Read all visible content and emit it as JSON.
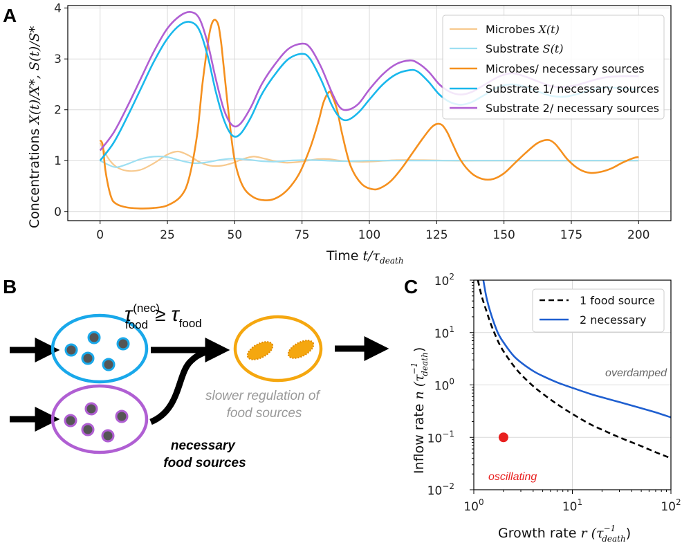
{
  "panels": {
    "a": "A",
    "b": "B",
    "c": "C"
  },
  "colors": {
    "microbes_faint": "#f7c98e",
    "substrate_faint": "#9ddff2",
    "microbes": "#f5901e",
    "substrate1": "#1ab8ec",
    "substrate2": "#b05fd3",
    "one_food": "#000000",
    "two_necessary": "#1f5fd0",
    "point": "#e8201f",
    "grid": "#d9d9d9",
    "blue_cell": "#19a8ea",
    "purple_cell": "#b05fd3",
    "orange_cell": "#f5a70f"
  },
  "chart_data": [
    {
      "id": "A",
      "type": "line",
      "title": "",
      "xlabel": "Time",
      "xlabel_math": "t/τ",
      "xlabel_sub": "death",
      "ylabel": "Concentrations",
      "ylabel_math": "X(t)/X*, S(t)/S*",
      "xlim": [
        -12,
        212
      ],
      "ylim": [
        -0.18,
        4.05
      ],
      "xticks": [
        0,
        25,
        50,
        75,
        100,
        125,
        150,
        175,
        200
      ],
      "yticks": [
        0,
        1,
        2,
        3,
        4
      ],
      "grid": true,
      "legend_position": "top-right",
      "series": [
        {
          "name": "Microbes",
          "math": "X(t)",
          "color_key": "microbes_faint",
          "width": 2.2,
          "x": [
            0,
            3,
            6,
            10,
            15,
            20,
            25,
            29,
            33,
            37,
            41,
            45,
            49,
            53,
            57,
            61,
            65,
            69,
            73,
            77,
            81,
            85,
            89,
            95,
            100,
            110,
            120,
            130,
            140,
            150,
            160,
            170,
            180,
            190,
            200
          ],
          "y": [
            1.35,
            1.05,
            0.88,
            0.8,
            0.82,
            0.95,
            1.12,
            1.18,
            1.1,
            0.97,
            0.9,
            0.9,
            0.95,
            1.03,
            1.08,
            1.04,
            0.99,
            0.96,
            0.97,
            1.0,
            1.03,
            1.03,
            1.0,
            0.98,
            0.98,
            1.01,
            1.01,
            1.0,
            1.0,
            1.0,
            1.0,
            1.0,
            1.0,
            1.0,
            1.0
          ]
        },
        {
          "name": "Substrate",
          "math": "S(t)",
          "color_key": "substrate_faint",
          "width": 2.2,
          "x": [
            0,
            3,
            6,
            10,
            15,
            20,
            25,
            30,
            35,
            40,
            45,
            50,
            55,
            60,
            65,
            70,
            75,
            80,
            90,
            100,
            110,
            120,
            130,
            140,
            150,
            160,
            170,
            180,
            190,
            200
          ],
          "y": [
            1.0,
            0.92,
            0.87,
            0.93,
            1.03,
            1.08,
            1.07,
            1.0,
            0.95,
            0.97,
            1.02,
            1.04,
            1.02,
            0.99,
            0.98,
            1.0,
            1.01,
            1.01,
            0.99,
            1.0,
            1.0,
            1.0,
            1.0,
            1.0,
            1.0,
            1.0,
            1.0,
            1.0,
            1.0,
            1.0
          ]
        },
        {
          "name": "Microbes/ necessary sources",
          "color_key": "microbes",
          "width": 2.6,
          "x": [
            0,
            1,
            2,
            4,
            6,
            10,
            15,
            20,
            25,
            30,
            33,
            36,
            38,
            40,
            41,
            42,
            43,
            44,
            45,
            46,
            48,
            50,
            53,
            57,
            62,
            66,
            70,
            74,
            78,
            81,
            83,
            85,
            86,
            88,
            90,
            93,
            97,
            101,
            104,
            108,
            112,
            116,
            120,
            123,
            125,
            127,
            129,
            131,
            134,
            138,
            142,
            146,
            150,
            154,
            158,
            162,
            165,
            167,
            169,
            171,
            174,
            178,
            182,
            186,
            190,
            194,
            198,
            200
          ],
          "y": [
            1.4,
            1.3,
            0.8,
            0.3,
            0.15,
            0.08,
            0.06,
            0.07,
            0.12,
            0.3,
            0.65,
            1.5,
            2.5,
            3.3,
            3.6,
            3.75,
            3.76,
            3.65,
            3.3,
            2.8,
            1.8,
            1.0,
            0.5,
            0.28,
            0.22,
            0.28,
            0.45,
            0.75,
            1.25,
            1.75,
            2.15,
            2.35,
            2.3,
            2.0,
            1.5,
            0.9,
            0.55,
            0.44,
            0.46,
            0.6,
            0.85,
            1.15,
            1.45,
            1.65,
            1.72,
            1.7,
            1.55,
            1.32,
            1.0,
            0.75,
            0.64,
            0.64,
            0.75,
            0.95,
            1.15,
            1.33,
            1.4,
            1.4,
            1.33,
            1.2,
            1.0,
            0.83,
            0.76,
            0.78,
            0.85,
            0.96,
            1.05,
            1.07
          ]
        },
        {
          "name": "Substrate 1/ necessary sources",
          "color_key": "substrate1",
          "width": 2.6,
          "x": [
            0,
            5,
            10,
            15,
            20,
            25,
            30,
            34,
            37,
            40,
            43,
            46,
            49,
            52,
            56,
            60,
            65,
            70,
            75,
            78,
            82,
            86,
            89,
            92,
            96,
            100,
            105,
            110,
            115,
            118,
            122,
            126,
            130,
            134,
            138,
            143,
            148,
            153,
            158,
            163,
            168,
            173,
            178,
            183,
            188,
            194,
            200
          ],
          "y": [
            1.0,
            1.35,
            1.85,
            2.4,
            2.95,
            3.4,
            3.68,
            3.72,
            3.55,
            3.05,
            2.35,
            1.8,
            1.5,
            1.52,
            1.85,
            2.3,
            2.7,
            3.0,
            3.1,
            3.0,
            2.6,
            2.1,
            1.85,
            1.8,
            1.95,
            2.2,
            2.5,
            2.7,
            2.78,
            2.75,
            2.55,
            2.3,
            2.15,
            2.1,
            2.15,
            2.3,
            2.45,
            2.5,
            2.45,
            2.35,
            2.27,
            2.26,
            2.32,
            2.4,
            2.44,
            2.42,
            2.4
          ]
        },
        {
          "name": "Substrate 2/ necessary sources",
          "color_key": "substrate2",
          "width": 2.6,
          "x": [
            0,
            5,
            10,
            15,
            20,
            25,
            30,
            34,
            37,
            40,
            43,
            46,
            49,
            52,
            56,
            60,
            65,
            70,
            75,
            78,
            82,
            86,
            89,
            92,
            96,
            100,
            105,
            110,
            115,
            118,
            122,
            126,
            130,
            134,
            138,
            143,
            148,
            153,
            158,
            163,
            168,
            173,
            178,
            183,
            188,
            194,
            200
          ],
          "y": [
            1.2,
            1.55,
            2.05,
            2.6,
            3.15,
            3.6,
            3.86,
            3.92,
            3.78,
            3.3,
            2.6,
            2.0,
            1.7,
            1.72,
            2.05,
            2.5,
            2.9,
            3.2,
            3.3,
            3.22,
            2.85,
            2.35,
            2.05,
            2.0,
            2.12,
            2.4,
            2.7,
            2.9,
            2.97,
            2.92,
            2.75,
            2.5,
            2.35,
            2.3,
            2.35,
            2.5,
            2.65,
            2.72,
            2.65,
            2.55,
            2.46,
            2.45,
            2.5,
            2.58,
            2.64,
            2.66,
            2.66
          ]
        }
      ]
    },
    {
      "id": "C",
      "type": "line",
      "title": "",
      "xlabel": "Growth rate",
      "xlabel_math": "r (τ",
      "xlabel_sup": "−1",
      "xlabel_sub": "death",
      "ylabel": "Inflow rate",
      "ylabel_math": "n (τ",
      "xscale": "log",
      "yscale": "log",
      "xlim": [
        1,
        100
      ],
      "ylim": [
        0.01,
        100
      ],
      "xticks": [
        1,
        10,
        100
      ],
      "xtick_labels": [
        [
          "10",
          "0"
        ],
        [
          "10",
          "1"
        ],
        [
          "10",
          "2"
        ]
      ],
      "yticks": [
        0.01,
        0.1,
        1,
        10,
        100
      ],
      "ytick_labels": [
        [
          "10",
          "−2"
        ],
        [
          "10",
          "−1"
        ],
        [
          "10",
          "0"
        ],
        [
          "10",
          "1"
        ],
        [
          "10",
          "2"
        ]
      ],
      "grid": true,
      "legend_position": "top-right",
      "series": [
        {
          "name": "1 food source",
          "style": "dashed",
          "color_key": "one_food",
          "x": [
            1.1,
            1.2,
            1.35,
            1.5,
            1.75,
            2,
            2.5,
            3,
            4,
            5,
            7,
            10,
            15,
            20,
            30,
            50,
            70,
            100
          ],
          "y": [
            100,
            50,
            25,
            14,
            7,
            4.4,
            2.4,
            1.6,
            0.95,
            0.68,
            0.43,
            0.28,
            0.18,
            0.14,
            0.1,
            0.068,
            0.052,
            0.04
          ]
        },
        {
          "name": "2 necessary",
          "style": "solid",
          "color_key": "two_necessary",
          "x": [
            1.25,
            1.35,
            1.5,
            1.75,
            2,
            2.5,
            3,
            4,
            5,
            7,
            10,
            15,
            20,
            30,
            50,
            70,
            100
          ],
          "y": [
            100,
            45,
            22,
            10,
            6.5,
            3.7,
            2.7,
            1.85,
            1.48,
            1.12,
            0.88,
            0.68,
            0.58,
            0.47,
            0.36,
            0.3,
            0.24
          ]
        }
      ],
      "points": [
        {
          "x": 2,
          "y": 0.1,
          "color_key": "point"
        }
      ],
      "annotations": {
        "overdamped": "overdamped",
        "oscillating": "oscillating"
      }
    }
  ],
  "schematic": {
    "tau_symbol": "τ",
    "tau_sup": "(nec)",
    "tau_sub": "food",
    "geq": "≥",
    "slower_line1": "slower regulation of",
    "slower_line2": "food sources",
    "necessary_line1": "necessary",
    "necessary_line2": "food sources"
  }
}
